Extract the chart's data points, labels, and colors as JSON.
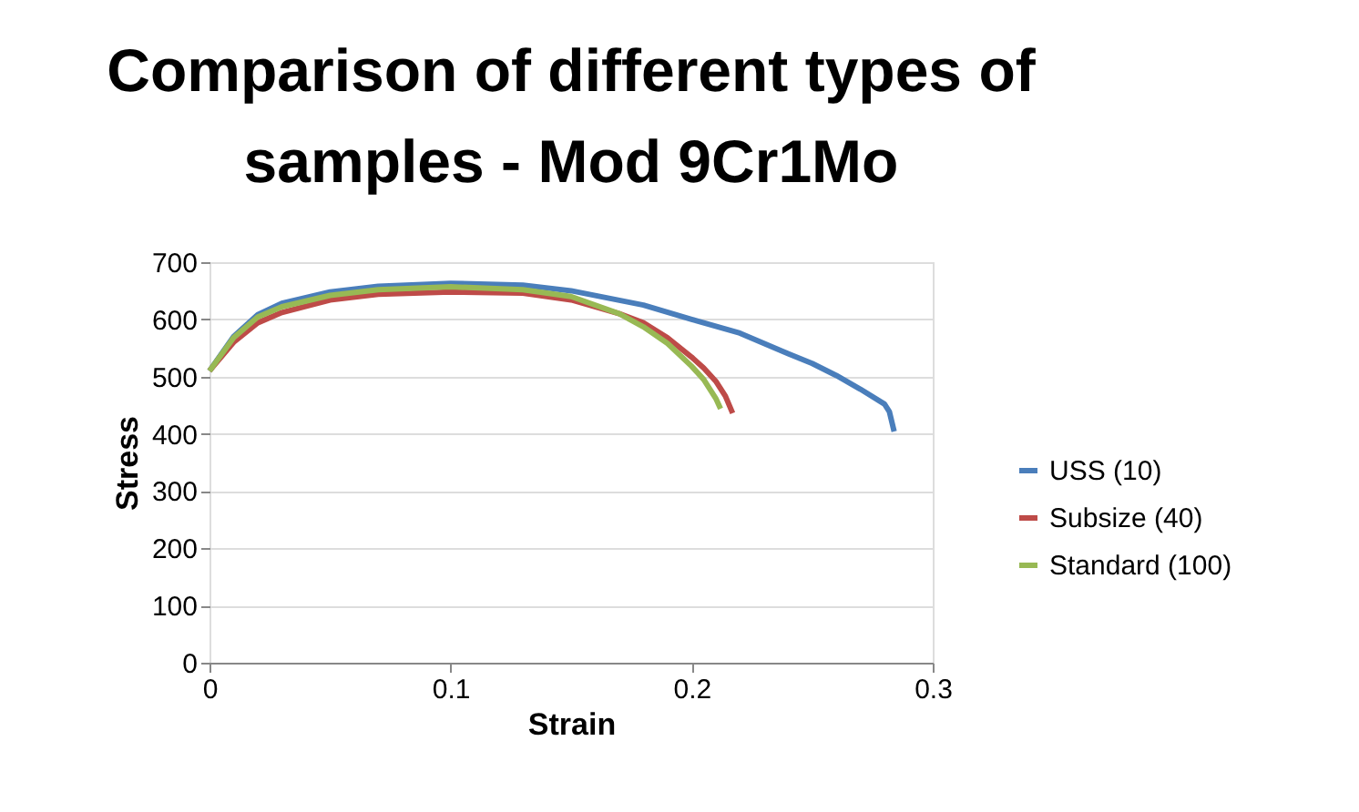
{
  "chart_data": {
    "type": "line",
    "title": "Comparison of different types of samples - Mod 9Cr1Mo",
    "xlabel": "Strain",
    "ylabel": "Stress",
    "xlim": [
      0,
      0.3
    ],
    "xticks": [
      0,
      0.1,
      0.2,
      0.3
    ],
    "ylim": [
      0,
      700
    ],
    "yticks": [
      0,
      100,
      200,
      300,
      400,
      500,
      600,
      700
    ],
    "grid": "y",
    "legend": "right",
    "marker": "none",
    "line_style": "solid",
    "series": [
      {
        "name": "USS (10)",
        "color": "#4a7ebb",
        "x": [
          0,
          0.01,
          0.02,
          0.03,
          0.05,
          0.07,
          0.1,
          0.13,
          0.15,
          0.18,
          0.2,
          0.22,
          0.24,
          0.25,
          0.26,
          0.27,
          0.28,
          0.282,
          0.284
        ],
        "values": [
          510,
          570,
          608,
          628,
          648,
          658,
          663,
          660,
          650,
          625,
          600,
          576,
          540,
          523,
          502,
          478,
          452,
          439,
          404
        ]
      },
      {
        "name": "Subsize (40)",
        "color": "#be4b48",
        "x": [
          0,
          0.01,
          0.02,
          0.03,
          0.05,
          0.07,
          0.1,
          0.13,
          0.15,
          0.17,
          0.18,
          0.19,
          0.2,
          0.205,
          0.21,
          0.214,
          0.217
        ],
        "values": [
          510,
          560,
          594,
          612,
          634,
          644,
          648,
          646,
          634,
          610,
          594,
          568,
          534,
          515,
          492,
          466,
          436
        ]
      },
      {
        "name": "Standard (100)",
        "color": "#98b954",
        "x": [
          0,
          0.01,
          0.02,
          0.03,
          0.05,
          0.07,
          0.1,
          0.13,
          0.15,
          0.17,
          0.18,
          0.19,
          0.2,
          0.205,
          0.21,
          0.212
        ],
        "values": [
          510,
          568,
          604,
          622,
          642,
          652,
          657,
          652,
          640,
          610,
          587,
          558,
          518,
          495,
          462,
          444
        ]
      }
    ]
  }
}
